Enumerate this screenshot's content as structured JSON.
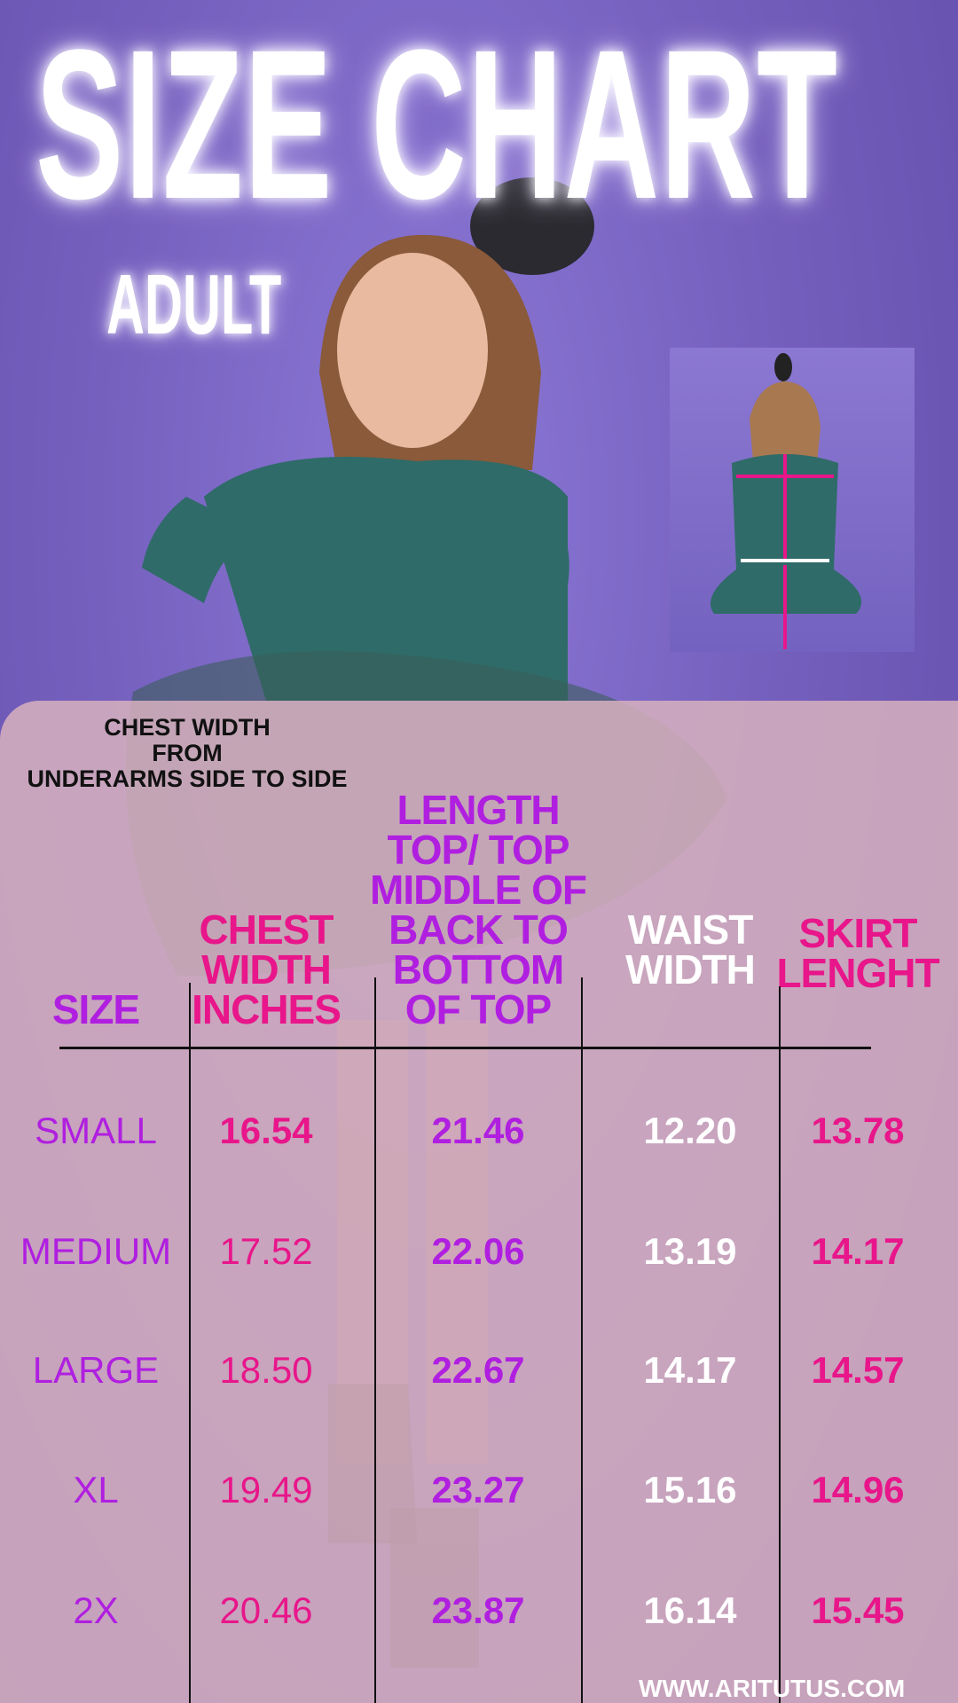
{
  "title": "SIZE CHART",
  "subtitle": "ADULT",
  "measurement_note": [
    "CHEST WIDTH",
    "FROM",
    "UNDERARMS SIDE TO SIDE"
  ],
  "colors": {
    "background": "#7a63c2",
    "panel": "#d6b0be",
    "purple_text": "#b01fe0",
    "pink_text": "#e8168a",
    "white_text": "#ffffff",
    "arrow": "#e8168a"
  },
  "table": {
    "headers": {
      "size": "SIZE",
      "chest": [
        "CHEST",
        "WIDTH",
        "INCHES"
      ],
      "length": [
        "LENGTH",
        "TOP/ TOP",
        "MIDDLE OF",
        "BACK TO",
        "BOTTOM",
        "OF TOP"
      ],
      "waist": [
        "WAIST",
        "WIDTH"
      ],
      "skirt": [
        "SKIRT",
        "LENGHT"
      ]
    },
    "rows": [
      {
        "size": "SMALL",
        "chest": "16.54",
        "length": "21.46",
        "waist": "12.20",
        "skirt": "13.78"
      },
      {
        "size": "MEDIUM",
        "chest": "17.52",
        "length": "22.06",
        "waist": "13.19",
        "skirt": "14.17"
      },
      {
        "size": "LARGE",
        "chest": "18.50",
        "length": "22.67",
        "waist": "14.17",
        "skirt": "14.57"
      },
      {
        "size": "XL",
        "chest": "19.49",
        "length": "23.27",
        "waist": "15.16",
        "skirt": "14.96"
      },
      {
        "size": "2X",
        "chest": "20.46",
        "length": "23.87",
        "waist": "16.14",
        "skirt": "15.45"
      }
    ]
  },
  "website": "WWW.ARITUTUS.COM"
}
